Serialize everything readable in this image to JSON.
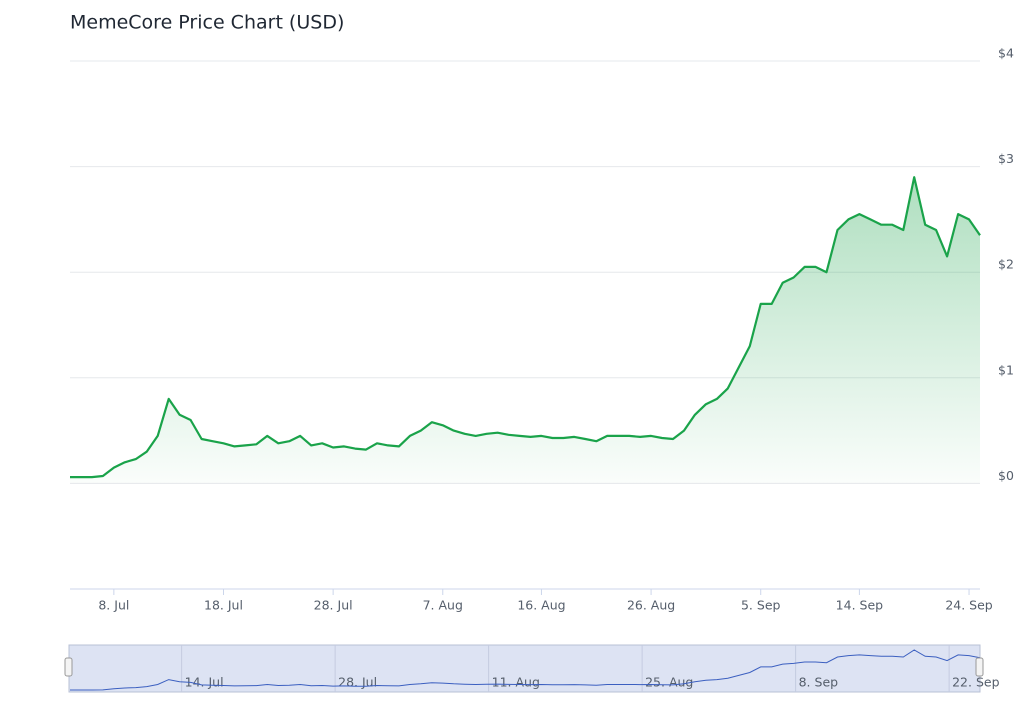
{
  "chart_data": {
    "type": "area-line",
    "title": "MemeCore Price Chart (USD)",
    "categories": [
      null,
      null,
      null,
      null,
      "8. Jul",
      null,
      null,
      null,
      null,
      null,
      null,
      null,
      null,
      null,
      "18. Jul",
      null,
      null,
      null,
      null,
      null,
      null,
      null,
      null,
      null,
      "28. Jul",
      null,
      null,
      null,
      null,
      null,
      null,
      null,
      null,
      null,
      "7. Aug",
      null,
      null,
      null,
      null,
      null,
      null,
      null,
      null,
      "16. Aug",
      null,
      null,
      null,
      null,
      null,
      null,
      null,
      null,
      null,
      "26. Aug",
      null,
      null,
      null,
      null,
      null,
      null,
      null,
      null,
      null,
      "5. Sep",
      null,
      null,
      null,
      null,
      null,
      null,
      null,
      null,
      "14. Sep",
      null,
      null,
      null,
      null,
      null,
      null,
      null,
      null,
      null,
      "24. Sep",
      null
    ],
    "series": [
      {
        "name": "Price",
        "color": "#1aa34a",
        "values": [
          0.06,
          0.06,
          0.06,
          0.07,
          0.15,
          0.2,
          0.23,
          0.3,
          0.45,
          0.8,
          0.65,
          0.6,
          0.42,
          0.4,
          0.38,
          0.35,
          0.36,
          0.37,
          0.45,
          0.38,
          0.4,
          0.45,
          0.36,
          0.38,
          0.34,
          0.35,
          0.33,
          0.32,
          0.38,
          0.36,
          0.35,
          0.45,
          0.5,
          0.58,
          0.55,
          0.5,
          0.47,
          0.45,
          0.47,
          0.48,
          0.46,
          0.45,
          0.44,
          0.45,
          0.43,
          0.43,
          0.44,
          0.42,
          0.4,
          0.45,
          0.45,
          0.45,
          0.44,
          0.45,
          0.43,
          0.42,
          0.5,
          0.65,
          0.75,
          0.8,
          0.9,
          1.1,
          1.3,
          1.7,
          1.7,
          1.9,
          1.95,
          2.05,
          2.05,
          2.0,
          2.4,
          2.5,
          2.55,
          2.5,
          2.45,
          2.45,
          2.4,
          2.9,
          2.45,
          2.4,
          2.15,
          2.55,
          2.5,
          2.35
        ]
      }
    ],
    "ylim": [
      -1,
      4
    ],
    "yticks": [
      {
        "value": 0,
        "label": "$0"
      },
      {
        "value": 1,
        "label": "$1"
      },
      {
        "value": 2,
        "label": "$2"
      },
      {
        "value": 3,
        "label": "$3"
      },
      {
        "value": 4,
        "label": "$4"
      }
    ],
    "grid": true,
    "navigator": {
      "categories": [
        null,
        null,
        null,
        null,
        null,
        null,
        null,
        null,
        null,
        null,
        "14. Jul",
        null,
        null,
        null,
        null,
        null,
        null,
        null,
        null,
        null,
        null,
        null,
        null,
        null,
        "28. Jul",
        null,
        null,
        null,
        null,
        null,
        null,
        null,
        null,
        null,
        null,
        null,
        null,
        null,
        "11. Aug",
        null,
        null,
        null,
        null,
        null,
        null,
        null,
        null,
        null,
        null,
        null,
        null,
        null,
        "25. Aug",
        null,
        null,
        null,
        null,
        null,
        null,
        null,
        null,
        null,
        null,
        null,
        null,
        null,
        "8. Sep",
        null,
        null,
        null,
        null,
        null,
        null,
        null,
        null,
        null,
        null,
        null,
        null,
        null,
        "22. Sep",
        null,
        null,
        null
      ]
    }
  }
}
